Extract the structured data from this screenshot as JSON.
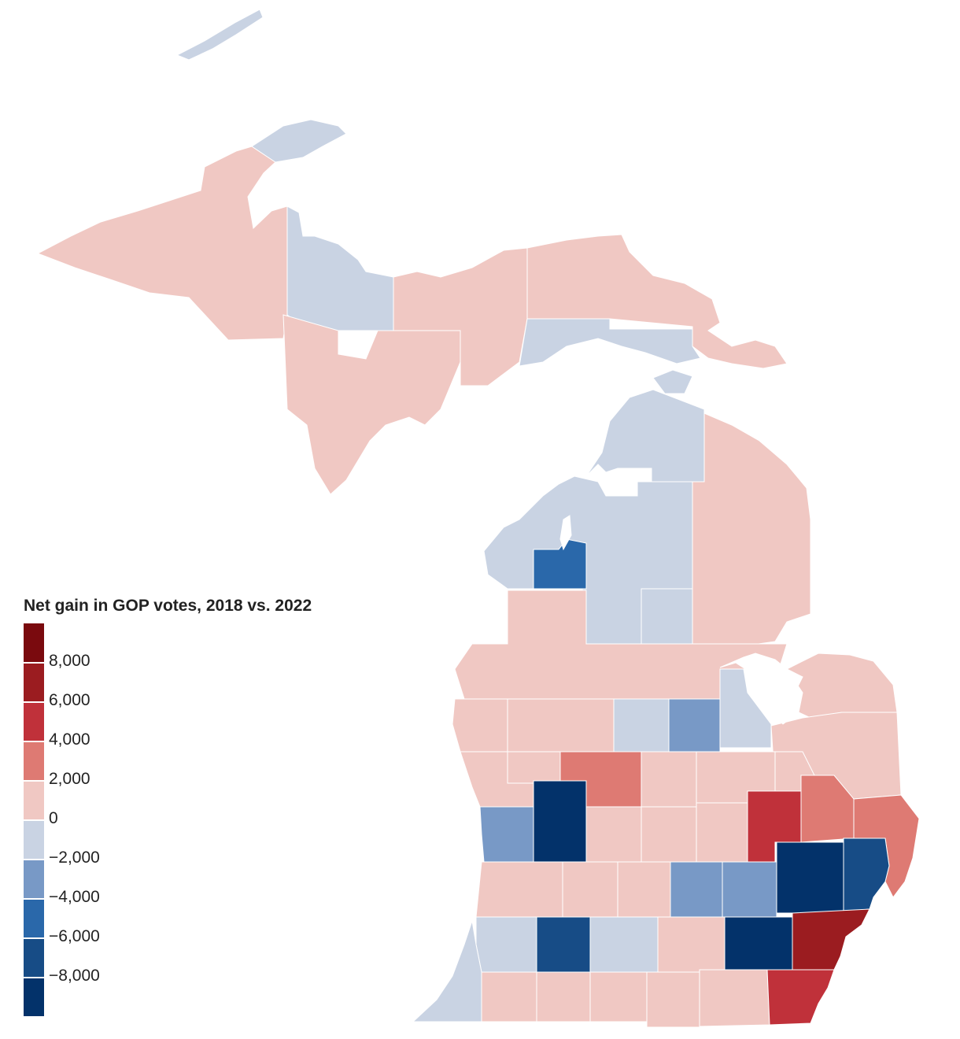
{
  "legend": {
    "title": "Net gain in GOP votes, 2018 vs. 2022",
    "ticks": [
      "8,000",
      "6,000",
      "4,000",
      "2,000",
      "0",
      "−2,000",
      "−4,000",
      "−6,000",
      "−8,000"
    ],
    "colors": [
      "#7a0a0e",
      "#9b1c20",
      "#c0313a",
      "#de7a73",
      "#f0c8c3",
      "#c9d3e3",
      "#7899c6",
      "#2a68aa",
      "#174c86",
      "#03326a"
    ]
  },
  "palette": {
    "red_light": "#f0c8c3",
    "red_mid": "#de7a73",
    "red_strong": "#c0313a",
    "red_darker": "#9b1c20",
    "blue_light": "#c9d3e3",
    "blue_mid": "#7899c6",
    "blue_strong": "#2a68aa",
    "blue_darker": "#174c86",
    "blue_darkest": "#03326a"
  }
}
